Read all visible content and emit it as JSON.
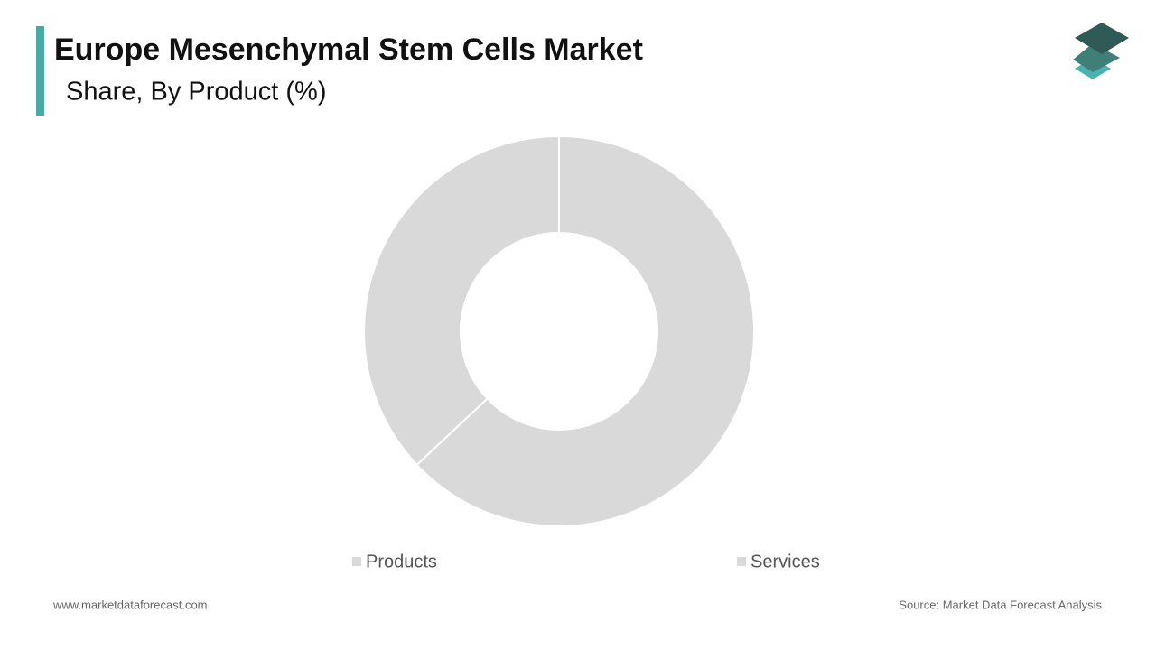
{
  "chart_data": {
    "type": "donut",
    "title": "Europe Mesenchymal Stem Cells Market",
    "subtitle": "Share, By Product (%)",
    "categories": [
      "Products",
      "Services"
    ],
    "values": [
      63,
      37
    ],
    "colors": [
      "#d9d9d9",
      "#d9d9d9"
    ]
  },
  "footer": {
    "website": "www.marketdataforecast.com",
    "source": "Source: Market Data Forecast Analysis"
  }
}
